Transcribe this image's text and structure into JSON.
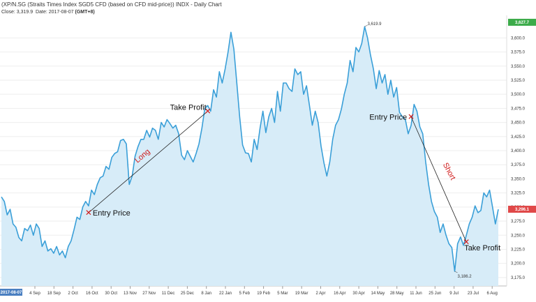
{
  "header": {
    "title": "(XP/N.SG (Straits Times Index SGD5 CFD (based on CFD mid-price)) INDX - Daily Chart",
    "close_label": "Close:",
    "close_value": "3,319.9",
    "date_label": "Date:",
    "date_value": "2017-08-07",
    "tz": "(GMT+8)"
  },
  "colors": {
    "line": "#3a9fd8",
    "fill": "#d7ecf8",
    "accent_red": "#d11a1a",
    "badge_green": "#3cab4a",
    "badge_red": "#e04848",
    "badge_blue": "#4a7fc1"
  },
  "chart_data": {
    "type": "area",
    "y_ticks": [
      3175,
      3200,
      3225,
      3250,
      3275,
      3300,
      3325,
      3350,
      3375,
      3400,
      3425,
      3450,
      3475,
      3500,
      3525,
      3550,
      3575,
      3600
    ],
    "ylim": [
      3160,
      3640
    ],
    "x_ticks": [
      "4 Sep",
      "18 Sep",
      "2 Oct",
      "16 Oct",
      "30 Oct",
      "13 Nov",
      "27 Nov",
      "11 Dec",
      "25 Dec",
      "8 Jan",
      "22 Jan",
      "5 Feb",
      "19 Feb",
      "5 Mar",
      "19 Mar",
      "2 Apr",
      "16 Apr",
      "30 Apr",
      "14 May",
      "28 May",
      "11 Jun",
      "25 Jun",
      "9 Jul",
      "23 Jul",
      "6 Aug"
    ],
    "x_start_label": "2017-08-07",
    "series": [
      {
        "points": [
          [
            0,
            3318
          ],
          [
            2,
            3310
          ],
          [
            4,
            3286
          ],
          [
            6,
            3296
          ],
          [
            8,
            3270
          ],
          [
            10,
            3264
          ],
          [
            12,
            3246
          ],
          [
            14,
            3240
          ],
          [
            16,
            3262
          ],
          [
            18,
            3258
          ],
          [
            20,
            3268
          ],
          [
            22,
            3250
          ],
          [
            24,
            3270
          ],
          [
            26,
            3262
          ],
          [
            28,
            3230
          ],
          [
            30,
            3240
          ],
          [
            32,
            3222
          ],
          [
            34,
            3226
          ],
          [
            36,
            3218
          ],
          [
            38,
            3230
          ],
          [
            40,
            3215
          ],
          [
            42,
            3222
          ],
          [
            44,
            3210
          ],
          [
            46,
            3230
          ],
          [
            48,
            3240
          ],
          [
            50,
            3260
          ],
          [
            52,
            3282
          ],
          [
            54,
            3278
          ],
          [
            56,
            3300
          ],
          [
            58,
            3310
          ],
          [
            60,
            3302
          ],
          [
            62,
            3330
          ],
          [
            64,
            3322
          ],
          [
            66,
            3340
          ],
          [
            68,
            3352
          ],
          [
            70,
            3355
          ],
          [
            72,
            3372
          ],
          [
            74,
            3367
          ],
          [
            76,
            3388
          ],
          [
            78,
            3395
          ],
          [
            80,
            3398
          ],
          [
            82,
            3418
          ],
          [
            84,
            3420
          ],
          [
            86,
            3412
          ],
          [
            88,
            3340
          ],
          [
            90,
            3355
          ],
          [
            92,
            3390
          ],
          [
            94,
            3407
          ],
          [
            96,
            3420
          ],
          [
            98,
            3420
          ],
          [
            100,
            3436
          ],
          [
            102,
            3424
          ],
          [
            104,
            3440
          ],
          [
            106,
            3436
          ],
          [
            108,
            3420
          ],
          [
            110,
            3450
          ],
          [
            112,
            3442
          ],
          [
            114,
            3455
          ],
          [
            116,
            3448
          ],
          [
            118,
            3440
          ],
          [
            120,
            3445
          ],
          [
            122,
            3430
          ],
          [
            124,
            3392
          ],
          [
            126,
            3384
          ],
          [
            128,
            3400
          ],
          [
            130,
            3390
          ],
          [
            132,
            3380
          ],
          [
            134,
            3395
          ],
          [
            136,
            3412
          ],
          [
            138,
            3440
          ],
          [
            140,
            3475
          ],
          [
            142,
            3480
          ],
          [
            144,
            3470
          ],
          [
            146,
            3508
          ],
          [
            148,
            3495
          ],
          [
            150,
            3540
          ],
          [
            152,
            3520
          ],
          [
            154,
            3545
          ],
          [
            156,
            3575
          ],
          [
            158,
            3610
          ],
          [
            160,
            3580
          ],
          [
            162,
            3520
          ],
          [
            164,
            3460
          ],
          [
            166,
            3410
          ],
          [
            168,
            3396
          ],
          [
            170,
            3395
          ],
          [
            172,
            3380
          ],
          [
            174,
            3420
          ],
          [
            176,
            3402
          ],
          [
            178,
            3440
          ],
          [
            180,
            3470
          ],
          [
            182,
            3432
          ],
          [
            184,
            3460
          ],
          [
            186,
            3475
          ],
          [
            188,
            3450
          ],
          [
            190,
            3505
          ],
          [
            192,
            3470
          ],
          [
            194,
            3520
          ],
          [
            196,
            3520
          ],
          [
            198,
            3510
          ],
          [
            200,
            3505
          ],
          [
            202,
            3545
          ],
          [
            204,
            3535
          ],
          [
            206,
            3540
          ],
          [
            208,
            3500
          ],
          [
            210,
            3515
          ],
          [
            212,
            3480
          ],
          [
            214,
            3445
          ],
          [
            216,
            3470
          ],
          [
            218,
            3450
          ],
          [
            220,
            3408
          ],
          [
            222,
            3378
          ],
          [
            224,
            3355
          ],
          [
            226,
            3380
          ],
          [
            228,
            3420
          ],
          [
            230,
            3445
          ],
          [
            232,
            3455
          ],
          [
            234,
            3474
          ],
          [
            236,
            3500
          ],
          [
            238,
            3520
          ],
          [
            240,
            3560
          ],
          [
            242,
            3540
          ],
          [
            244,
            3583
          ],
          [
            246,
            3575
          ],
          [
            248,
            3590
          ],
          [
            250,
            3620
          ],
          [
            252,
            3600
          ],
          [
            254,
            3570
          ],
          [
            256,
            3545
          ],
          [
            258,
            3510
          ],
          [
            260,
            3542
          ],
          [
            262,
            3520
          ],
          [
            264,
            3535
          ],
          [
            266,
            3500
          ],
          [
            268,
            3525
          ],
          [
            270,
            3495
          ],
          [
            272,
            3512
          ],
          [
            274,
            3468
          ],
          [
            276,
            3460
          ],
          [
            278,
            3455
          ],
          [
            280,
            3430
          ],
          [
            282,
            3445
          ],
          [
            284,
            3482
          ],
          [
            286,
            3470
          ],
          [
            288,
            3442
          ],
          [
            290,
            3430
          ],
          [
            292,
            3380
          ],
          [
            294,
            3340
          ],
          [
            296,
            3310
          ],
          [
            298,
            3292
          ],
          [
            300,
            3282
          ],
          [
            302,
            3255
          ],
          [
            304,
            3270
          ],
          [
            306,
            3250
          ],
          [
            308,
            3235
          ],
          [
            310,
            3228
          ],
          [
            312,
            3186
          ],
          [
            314,
            3235
          ],
          [
            316,
            3247
          ],
          [
            318,
            3232
          ],
          [
            320,
            3250
          ],
          [
            322,
            3270
          ],
          [
            324,
            3282
          ],
          [
            326,
            3302
          ],
          [
            328,
            3290
          ],
          [
            330,
            3294
          ],
          [
            332,
            3325
          ],
          [
            334,
            3318
          ],
          [
            336,
            3330
          ],
          [
            338,
            3300
          ],
          [
            340,
            3270
          ],
          [
            342,
            3296
          ]
        ]
      }
    ],
    "last_value_badge": "3,296.1",
    "max_badge": "3,627.7",
    "point_labels": [
      {
        "text": "3,619.9",
        "x": 250,
        "y": 3620
      },
      {
        "text": "3,186.2",
        "x": 312,
        "y": 3186
      }
    ],
    "annotations": {
      "long": {
        "entry_label": "Entry Price",
        "exit_label": "Take Profit",
        "trend_label": "Long",
        "entry": {
          "x": 60,
          "y": 3290
        },
        "exit": {
          "x": 142,
          "y": 3470
        }
      },
      "short": {
        "entry_label": "Entry Price",
        "exit_label": "Take Profit",
        "trend_label": "Short",
        "entry": {
          "x": 282,
          "y": 3460
        },
        "exit": {
          "x": 320,
          "y": 3238
        }
      }
    }
  }
}
